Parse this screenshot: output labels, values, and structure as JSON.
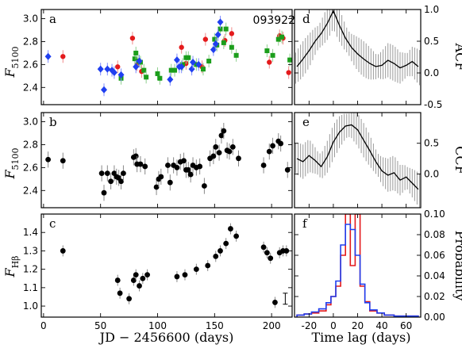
{
  "figure": {
    "id_label": "093922",
    "xlabel_left": "JD − 2456600 (days)",
    "xlabel_right": "Time lag (days)"
  },
  "chart_data": [
    {
      "panel": "a",
      "type": "scatter",
      "ylabel": "F5100",
      "xlim": [
        -2,
        218
      ],
      "ylim": [
        2.25,
        3.08
      ],
      "xticks": [
        0,
        50,
        100,
        150,
        200
      ],
      "yticks": [
        2.4,
        2.6,
        2.8,
        3.0
      ],
      "series": [
        {
          "color": "#e41a1c",
          "marker": "circle",
          "points": [
            [
              17,
              2.67
            ],
            [
              65,
              2.58
            ],
            [
              78,
              2.83
            ],
            [
              82,
              2.6
            ],
            [
              86,
              2.54
            ],
            [
              121,
              2.75
            ],
            [
              125,
              2.61
            ],
            [
              139,
              2.58
            ],
            [
              142,
              2.82
            ],
            [
              159,
              2.81
            ],
            [
              165,
              2.87
            ],
            [
              198,
              2.62
            ],
            [
              207,
              2.85
            ],
            [
              210,
              2.83
            ],
            [
              215,
              2.53
            ]
          ]
        },
        {
          "color": "#1b9e1b",
          "marker": "square",
          "points": [
            [
              68,
              2.48
            ],
            [
              80,
              2.65
            ],
            [
              81,
              2.7
            ],
            [
              83,
              2.63
            ],
            [
              85,
              2.62
            ],
            [
              88,
              2.55
            ],
            [
              90,
              2.49
            ],
            [
              100,
              2.52
            ],
            [
              102,
              2.48
            ],
            [
              112,
              2.55
            ],
            [
              115,
              2.55
            ],
            [
              122,
              2.6
            ],
            [
              125,
              2.66
            ],
            [
              127,
              2.66
            ],
            [
              134,
              2.6
            ],
            [
              140,
              2.56
            ],
            [
              145,
              2.63
            ],
            [
              150,
              2.82
            ],
            [
              152,
              2.77
            ],
            [
              155,
              2.91
            ],
            [
              158,
              2.79
            ],
            [
              160,
              2.91
            ],
            [
              165,
              2.75
            ],
            [
              169,
              2.68
            ],
            [
              196,
              2.72
            ],
            [
              201,
              2.68
            ],
            [
              206,
              2.82
            ],
            [
              209,
              2.84
            ],
            [
              216,
              2.64
            ]
          ]
        },
        {
          "color": "#1f3ff0",
          "marker": "diamond",
          "points": [
            [
              4,
              2.67
            ],
            [
              50,
              2.56
            ],
            [
              53,
              2.38
            ],
            [
              56,
              2.56
            ],
            [
              60,
              2.55
            ],
            [
              62,
              2.53
            ],
            [
              68,
              2.51
            ],
            [
              81,
              2.58
            ],
            [
              84,
              2.63
            ],
            [
              111,
              2.47
            ],
            [
              117,
              2.64
            ],
            [
              119,
              2.58
            ],
            [
              121,
              2.58
            ],
            [
              130,
              2.56
            ],
            [
              131,
              2.62
            ],
            [
              136,
              2.6
            ],
            [
              149,
              2.73
            ],
            [
              151,
              2.78
            ],
            [
              153,
              2.86
            ],
            [
              155,
              2.97
            ]
          ]
        }
      ]
    },
    {
      "panel": "b",
      "type": "scatter",
      "ylabel": "F5100",
      "xlim": [
        -2,
        218
      ],
      "ylim": [
        2.25,
        3.08
      ],
      "xticks": [
        0,
        50,
        100,
        150,
        200
      ],
      "yticks": [
        2.4,
        2.6,
        2.8,
        3.0
      ],
      "points": [
        [
          4,
          2.67
        ],
        [
          17,
          2.66
        ],
        [
          51,
          2.55
        ],
        [
          53,
          2.38
        ],
        [
          56,
          2.55
        ],
        [
          59,
          2.48
        ],
        [
          62,
          2.55
        ],
        [
          64,
          2.52
        ],
        [
          66,
          2.51
        ],
        [
          68,
          2.48
        ],
        [
          70,
          2.55
        ],
        [
          79,
          2.69
        ],
        [
          81,
          2.7
        ],
        [
          82,
          2.63
        ],
        [
          85,
          2.63
        ],
        [
          89,
          2.61
        ],
        [
          99,
          2.43
        ],
        [
          101,
          2.5
        ],
        [
          103,
          2.52
        ],
        [
          109,
          2.62
        ],
        [
          111,
          2.47
        ],
        [
          114,
          2.62
        ],
        [
          117,
          2.6
        ],
        [
          120,
          2.65
        ],
        [
          123,
          2.66
        ],
        [
          125,
          2.58
        ],
        [
          127,
          2.58
        ],
        [
          129,
          2.54
        ],
        [
          131,
          2.62
        ],
        [
          134,
          2.6
        ],
        [
          137,
          2.61
        ],
        [
          141,
          2.44
        ],
        [
          146,
          2.68
        ],
        [
          149,
          2.7
        ],
        [
          151,
          2.78
        ],
        [
          154,
          2.73
        ],
        [
          156,
          2.88
        ],
        [
          158,
          2.92
        ],
        [
          161,
          2.75
        ],
        [
          163,
          2.74
        ],
        [
          166,
          2.78
        ],
        [
          171,
          2.68
        ],
        [
          193,
          2.62
        ],
        [
          198,
          2.74
        ],
        [
          201,
          2.79
        ],
        [
          206,
          2.83
        ],
        [
          208,
          2.81
        ],
        [
          214,
          2.58
        ]
      ]
    },
    {
      "panel": "c",
      "type": "scatter",
      "ylabel": "FHβ",
      "xlim": [
        -2,
        218
      ],
      "ylim": [
        0.94,
        1.5
      ],
      "xticks": [
        0,
        50,
        100,
        150,
        200
      ],
      "yticks": [
        1.0,
        1.1,
        1.2,
        1.3,
        1.4
      ],
      "points": [
        [
          17,
          1.3
        ],
        [
          65,
          1.14
        ],
        [
          67,
          1.07
        ],
        [
          75,
          1.04
        ],
        [
          79,
          1.14
        ],
        [
          81,
          1.17
        ],
        [
          84,
          1.11
        ],
        [
          87,
          1.15
        ],
        [
          91,
          1.17
        ],
        [
          117,
          1.16
        ],
        [
          124,
          1.17
        ],
        [
          134,
          1.2
        ],
        [
          144,
          1.22
        ],
        [
          151,
          1.27
        ],
        [
          155,
          1.3
        ],
        [
          160,
          1.34
        ],
        [
          164,
          1.42
        ],
        [
          169,
          1.38
        ],
        [
          193,
          1.32
        ],
        [
          196,
          1.29
        ],
        [
          199,
          1.26
        ],
        [
          203,
          1.02
        ],
        [
          207,
          1.29
        ],
        [
          210,
          1.3
        ],
        [
          213,
          1.3
        ]
      ]
    },
    {
      "panel": "d",
      "type": "line",
      "ylabel": "ACF",
      "xlim": [
        -32,
        72
      ],
      "ylim": [
        -0.5,
        1.0
      ],
      "xticks": [
        -20,
        0,
        20,
        40,
        60
      ],
      "yticks": [
        -0.5,
        0.0,
        0.5,
        1.0
      ],
      "x": [
        -30,
        -25,
        -20,
        -15,
        -10,
        -5,
        0,
        5,
        10,
        15,
        20,
        25,
        30,
        35,
        40,
        45,
        50,
        55,
        60,
        65,
        70
      ],
      "y": [
        0.1,
        0.22,
        0.35,
        0.5,
        0.62,
        0.78,
        0.98,
        0.75,
        0.55,
        0.4,
        0.3,
        0.22,
        0.15,
        0.1,
        0.12,
        0.2,
        0.15,
        0.08,
        0.12,
        0.18,
        0.1
      ]
    },
    {
      "panel": "e",
      "type": "line",
      "ylabel": "CCF",
      "xlim": [
        -32,
        72
      ],
      "ylim": [
        -0.55,
        1.0
      ],
      "xticks": [
        -20,
        0,
        20,
        40,
        60
      ],
      "yticks": [
        0.0,
        0.5
      ],
      "x": [
        -30,
        -25,
        -20,
        -15,
        -10,
        -5,
        0,
        5,
        10,
        15,
        20,
        25,
        30,
        35,
        40,
        45,
        50,
        55,
        60,
        65,
        70
      ],
      "y": [
        0.25,
        0.2,
        0.3,
        0.22,
        0.12,
        0.28,
        0.52,
        0.68,
        0.78,
        0.8,
        0.72,
        0.55,
        0.38,
        0.2,
        0.05,
        -0.02,
        0.02,
        -0.1,
        -0.05,
        -0.15,
        -0.25
      ]
    },
    {
      "panel": "f",
      "type": "histogram",
      "ylabel": "Probability",
      "xlim": [
        -32,
        72
      ],
      "ylim": [
        0.0,
        0.1
      ],
      "xticks": [
        -20,
        0,
        20,
        40,
        60
      ],
      "yticks": [
        0.0,
        0.02,
        0.04,
        0.06,
        0.08,
        0.1
      ],
      "bin_edges": [
        -30,
        -24,
        -18,
        -12,
        -6,
        -2,
        2,
        6,
        10,
        14,
        18,
        22,
        26,
        30,
        36,
        42,
        50,
        60,
        70
      ],
      "series": [
        {
          "color": "#e41a1c",
          "values": [
            0.002,
            0.003,
            0.004,
            0.006,
            0.012,
            0.02,
            0.03,
            0.06,
            0.1,
            0.05,
            0.1,
            0.03,
            0.015,
            0.006,
            0.004,
            0.002,
            0.001,
            0.001
          ]
        },
        {
          "color": "#1f3ff0",
          "values": [
            0.002,
            0.003,
            0.005,
            0.008,
            0.014,
            0.02,
            0.035,
            0.07,
            0.09,
            0.085,
            0.06,
            0.032,
            0.014,
            0.007,
            0.004,
            0.002,
            0.001,
            0.001
          ]
        }
      ]
    }
  ]
}
